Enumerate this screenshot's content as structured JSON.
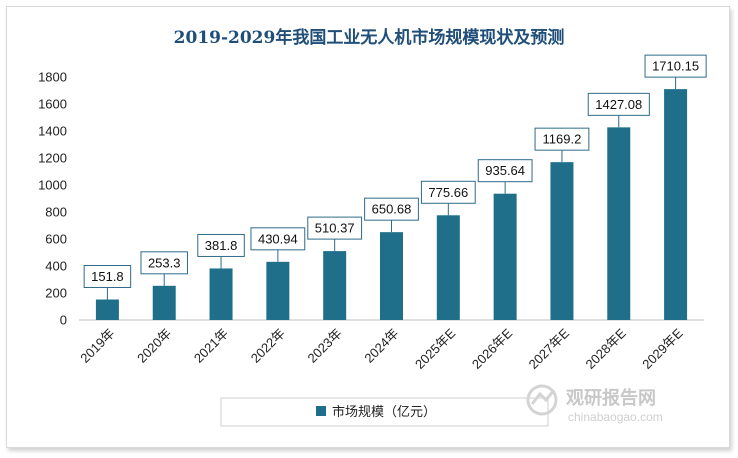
{
  "chart_data": {
    "type": "bar",
    "title": "2019-2029年我国工业无人机市场规模现状及预测",
    "categories": [
      "2019年",
      "2020年",
      "2021年",
      "2022年",
      "2023年",
      "2024年",
      "2025年E",
      "2026年E",
      "2027年E",
      "2028年E",
      "2029年E"
    ],
    "series": [
      {
        "name": "市场规模（亿元）",
        "values": [
          151.8,
          253.3,
          381.8,
          430.94,
          510.37,
          650.68,
          775.66,
          935.64,
          1169.2,
          1427.08,
          1710.15
        ],
        "color": "#1f6f8b"
      }
    ],
    "data_labels": [
      "151.8",
      "253.3",
      "381.8",
      "430.94",
      "510.37",
      "650.68",
      "775.66",
      "935.64",
      "1169.2",
      "1427.08",
      "1710.15"
    ],
    "ylim": [
      0,
      1800
    ],
    "yticks": [
      0,
      200,
      400,
      600,
      800,
      1000,
      1200,
      1400,
      1600,
      1800
    ],
    "grid": false,
    "legend_position": "bottom"
  },
  "watermark": {
    "cn": "观研报告网",
    "en": "chinabaogao.com"
  }
}
